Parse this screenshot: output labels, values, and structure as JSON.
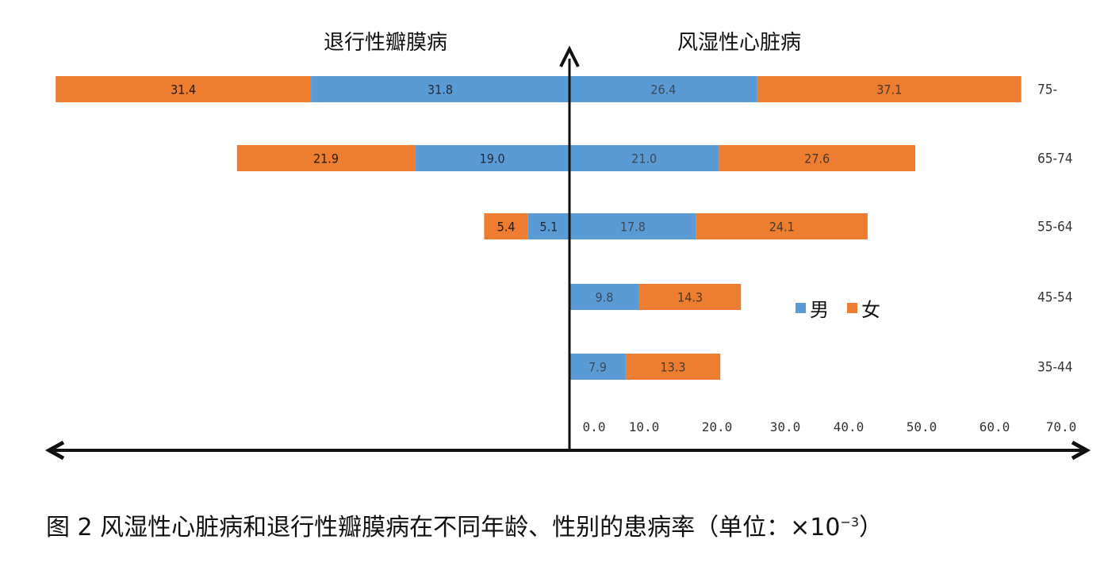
{
  "chart_data": {
    "type": "bar",
    "orientation": "horizontal",
    "layout": "diverging-stacked",
    "panels": [
      {
        "side": "left",
        "title": "退行性瓣膜病"
      },
      {
        "side": "right",
        "title": "风湿性心脏病"
      }
    ],
    "categories": [
      "75-",
      "65-74",
      "55-64",
      "45-54",
      "35-44"
    ],
    "legend": {
      "items": [
        "男",
        "女"
      ],
      "placement": "right-center"
    },
    "colors": {
      "男": "#5B9BD5",
      "女": "#ED7D31"
    },
    "series": [
      {
        "panel": "退行性瓣膜病",
        "name": "男",
        "values": [
          31.8,
          19.0,
          5.1,
          null,
          null
        ],
        "labels": [
          "31.8",
          "19.0",
          "5.1",
          "",
          ""
        ]
      },
      {
        "panel": "退行性瓣膜病",
        "name": "女",
        "values": [
          31.4,
          21.9,
          5.4,
          null,
          null
        ],
        "labels": [
          "31.4",
          "21.9",
          "5.4",
          "",
          ""
        ]
      },
      {
        "panel": "风湿性心脏病",
        "name": "男",
        "values": [
          26.4,
          21.0,
          17.8,
          9.8,
          7.9
        ],
        "labels": [
          "26.4",
          "21.0",
          "17.8",
          "9.8",
          "7.9"
        ]
      },
      {
        "panel": "风湿性心脏病",
        "name": "女",
        "values": [
          37.1,
          27.6,
          24.1,
          14.3,
          13.3
        ],
        "labels": [
          "37.1",
          "27.6",
          "24.1",
          "14.3",
          "13.3"
        ]
      }
    ],
    "xaxis": {
      "tick_labels": [
        "0.0",
        "10.0",
        "20.0",
        "30.0",
        "40.0",
        "50.0",
        "60.0",
        "70.0"
      ],
      "xlim": [
        0,
        70
      ]
    },
    "grid": false
  },
  "caption": {
    "text": "图 2 风湿性心脏病和退行性瓣膜病在不同年龄、性别的患病率（单位：×10",
    "sup": "−3",
    "close": "）"
  }
}
